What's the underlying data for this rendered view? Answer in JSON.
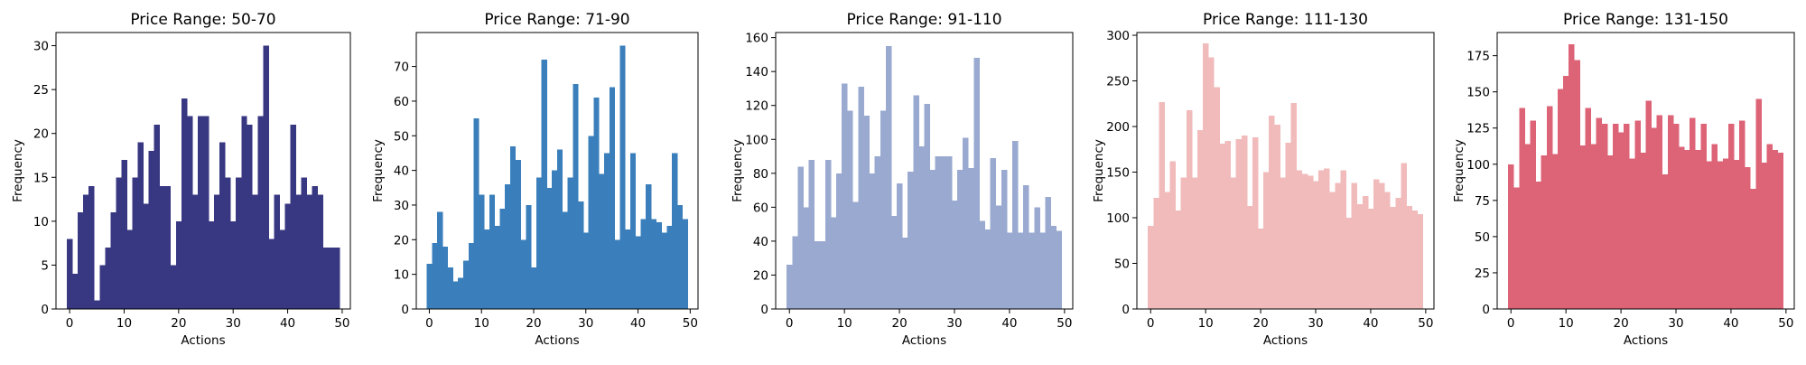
{
  "chart_data": [
    {
      "type": "bar",
      "title": "Price Range: 50-70",
      "xlabel": "Actions",
      "ylabel": "Frequency",
      "color": "#383782",
      "xlim": [
        -2.5,
        51.5
      ],
      "ylim": [
        0,
        31.5
      ],
      "xticks": [
        0,
        10,
        20,
        30,
        40,
        50
      ],
      "yticks": [
        0,
        5,
        10,
        15,
        20,
        25,
        30
      ],
      "x": [
        0,
        1,
        2,
        3,
        4,
        5,
        6,
        7,
        8,
        9,
        10,
        11,
        12,
        13,
        14,
        15,
        16,
        17,
        18,
        19,
        20,
        21,
        22,
        23,
        24,
        25,
        26,
        27,
        28,
        29,
        30,
        31,
        32,
        33,
        34,
        35,
        36,
        37,
        38,
        39,
        40,
        41,
        42,
        43,
        44,
        45,
        46,
        47,
        48,
        49
      ],
      "values": [
        8,
        4,
        11,
        13,
        14,
        1,
        5,
        7,
        11,
        15,
        17,
        9,
        15,
        19,
        12,
        18,
        21,
        14,
        14,
        5,
        10,
        24,
        22,
        13,
        22,
        22,
        10,
        13,
        19,
        15,
        10,
        15,
        22,
        21,
        13,
        22,
        30,
        8,
        13,
        9,
        12,
        21,
        13,
        15,
        13,
        14,
        13,
        7,
        7,
        7
      ]
    },
    {
      "type": "bar",
      "title": "Price Range: 71-90",
      "xlabel": "Actions",
      "ylabel": "Frequency",
      "color": "#3a7fbb",
      "xlim": [
        -2.5,
        51.5
      ],
      "ylim": [
        0,
        79.8
      ],
      "xticks": [
        0,
        10,
        20,
        30,
        40,
        50
      ],
      "yticks": [
        0,
        10,
        20,
        30,
        40,
        50,
        60,
        70
      ],
      "x": [
        0,
        1,
        2,
        3,
        4,
        5,
        6,
        7,
        8,
        9,
        10,
        11,
        12,
        13,
        14,
        15,
        16,
        17,
        18,
        19,
        20,
        21,
        22,
        23,
        24,
        25,
        26,
        27,
        28,
        29,
        30,
        31,
        32,
        33,
        34,
        35,
        36,
        37,
        38,
        39,
        40,
        41,
        42,
        43,
        44,
        45,
        46,
        47,
        48,
        49
      ],
      "values": [
        13,
        19,
        28,
        18,
        12,
        8,
        9,
        14,
        19,
        55,
        33,
        23,
        33,
        24,
        29,
        36,
        47,
        43,
        20,
        30,
        12,
        38,
        72,
        35,
        40,
        46,
        28,
        38,
        65,
        31,
        22,
        50,
        61,
        39,
        45,
        64,
        20,
        76,
        23,
        45,
        21,
        26,
        36,
        26,
        25,
        22,
        24,
        45,
        30,
        26
      ]
    },
    {
      "type": "bar",
      "title": "Price Range: 91-110",
      "xlabel": "Actions",
      "ylabel": "Frequency",
      "color": "#99a9d0",
      "xlim": [
        -2.5,
        51.5
      ],
      "ylim": [
        0,
        163
      ],
      "xticks": [
        0,
        10,
        20,
        30,
        40,
        50
      ],
      "yticks": [
        0,
        20,
        40,
        60,
        80,
        100,
        120,
        140,
        160
      ],
      "x": [
        0,
        1,
        2,
        3,
        4,
        5,
        6,
        7,
        8,
        9,
        10,
        11,
        12,
        13,
        14,
        15,
        16,
        17,
        18,
        19,
        20,
        21,
        22,
        23,
        24,
        25,
        26,
        27,
        28,
        29,
        30,
        31,
        32,
        33,
        34,
        35,
        36,
        37,
        38,
        39,
        40,
        41,
        42,
        43,
        44,
        45,
        46,
        47,
        48,
        49
      ],
      "values": [
        26,
        43,
        84,
        60,
        88,
        40,
        40,
        88,
        54,
        80,
        133,
        117,
        63,
        131,
        114,
        80,
        90,
        117,
        155,
        55,
        74,
        42,
        81,
        126,
        96,
        121,
        82,
        90,
        90,
        90,
        64,
        82,
        101,
        83,
        148,
        52,
        47,
        89,
        61,
        82,
        45,
        99,
        45,
        73,
        45,
        60,
        45,
        66,
        49,
        46
      ]
    },
    {
      "type": "bar",
      "title": "Price Range: 111-130",
      "xlabel": "Actions",
      "ylabel": "Frequency",
      "color": "#f1bbbb",
      "xlim": [
        -2.5,
        51.5
      ],
      "ylim": [
        0,
        303
      ],
      "xticks": [
        0,
        10,
        20,
        30,
        40,
        50
      ],
      "yticks": [
        0,
        50,
        100,
        150,
        200,
        250,
        300
      ],
      "x": [
        0,
        1,
        2,
        3,
        4,
        5,
        6,
        7,
        8,
        9,
        10,
        11,
        12,
        13,
        14,
        15,
        16,
        17,
        18,
        19,
        20,
        21,
        22,
        23,
        24,
        25,
        26,
        27,
        28,
        29,
        30,
        31,
        32,
        33,
        34,
        35,
        36,
        37,
        38,
        39,
        40,
        41,
        42,
        43,
        44,
        45,
        46,
        47,
        48,
        49
      ],
      "values": [
        91,
        122,
        227,
        128,
        162,
        108,
        144,
        218,
        144,
        196,
        291,
        276,
        243,
        181,
        184,
        144,
        186,
        190,
        113,
        188,
        88,
        150,
        212,
        202,
        144,
        182,
        226,
        152,
        148,
        146,
        140,
        152,
        154,
        128,
        138,
        152,
        100,
        138,
        115,
        124,
        110,
        142,
        138,
        128,
        112,
        122,
        160,
        113,
        108,
        104
      ]
    },
    {
      "type": "bar",
      "title": "Price Range: 131-150",
      "xlabel": "Actions",
      "ylabel": "Frequency",
      "color": "#dd6377",
      "xlim": [
        -2.5,
        51.5
      ],
      "ylim": [
        0,
        191
      ],
      "xticks": [
        0,
        10,
        20,
        30,
        40,
        50
      ],
      "yticks": [
        0,
        25,
        50,
        75,
        100,
        125,
        150,
        175
      ],
      "x": [
        0,
        1,
        2,
        3,
        4,
        5,
        6,
        7,
        8,
        9,
        10,
        11,
        12,
        13,
        14,
        15,
        16,
        17,
        18,
        19,
        20,
        21,
        22,
        23,
        24,
        25,
        26,
        27,
        28,
        29,
        30,
        31,
        32,
        33,
        34,
        35,
        36,
        37,
        38,
        39,
        40,
        41,
        42,
        43,
        44,
        45,
        46,
        47,
        48,
        49
      ],
      "values": [
        100,
        84,
        139,
        114,
        130,
        88,
        106,
        140,
        107,
        152,
        161,
        183,
        172,
        113,
        139,
        114,
        132,
        128,
        106,
        128,
        122,
        128,
        104,
        130,
        108,
        144,
        125,
        134,
        93,
        134,
        128,
        112,
        110,
        132,
        110,
        128,
        102,
        114,
        102,
        104,
        128,
        103,
        130,
        98,
        83,
        145,
        101,
        114,
        110,
        108
      ]
    }
  ]
}
